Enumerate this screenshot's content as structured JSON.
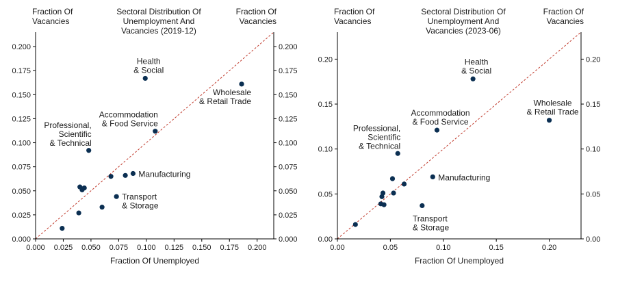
{
  "colors": {
    "point": "#0b2f52",
    "diagonal": "#c0392b",
    "axis": "#000000"
  },
  "chart_data": [
    {
      "type": "scatter",
      "title": "Sectoral Distribution Of Unemployment And Vacancies (2019-12)",
      "title_lines": [
        "Sectoral Distribution Of",
        "Unemployment And",
        "Vacancies (2019-12)"
      ],
      "ylabel_left_lines": [
        "Fraction Of",
        "Vacancies"
      ],
      "ylabel_right_lines": [
        "Fraction Of",
        "Vacancies"
      ],
      "xlabel": "Fraction Of Unemployed",
      "xlim": [
        0.0,
        0.215
      ],
      "ylim": [
        0.0,
        0.215
      ],
      "xticks": [
        "0.000",
        "0.025",
        "0.050",
        "0.075",
        "0.100",
        "0.125",
        "0.150",
        "0.175",
        "0.200"
      ],
      "yticks": [
        "0.000",
        "0.025",
        "0.050",
        "0.075",
        "0.100",
        "0.125",
        "0.150",
        "0.175",
        "0.200"
      ],
      "diagonal": true,
      "points": [
        {
          "x": 0.024,
          "y": 0.011
        },
        {
          "x": 0.039,
          "y": 0.027
        },
        {
          "x": 0.04,
          "y": 0.054
        },
        {
          "x": 0.042,
          "y": 0.051
        },
        {
          "x": 0.044,
          "y": 0.053
        },
        {
          "x": 0.048,
          "y": 0.092
        },
        {
          "x": 0.06,
          "y": 0.033
        },
        {
          "x": 0.068,
          "y": 0.065
        },
        {
          "x": 0.073,
          "y": 0.044
        },
        {
          "x": 0.081,
          "y": 0.066
        },
        {
          "x": 0.088,
          "y": 0.068
        },
        {
          "x": 0.099,
          "y": 0.167
        },
        {
          "x": 0.108,
          "y": 0.112
        },
        {
          "x": 0.186,
          "y": 0.161
        }
      ],
      "annotations": [
        {
          "lines": [
            "Health",
            "& Social"
          ],
          "x": 0.099,
          "y": 0.167,
          "pos": "above"
        },
        {
          "lines": [
            "Wholesale",
            "& Retail Trade"
          ],
          "x": 0.186,
          "y": 0.161,
          "pos": "below-left"
        },
        {
          "lines": [
            "Accommodation",
            "& Food Service"
          ],
          "x": 0.108,
          "y": 0.112,
          "pos": "above-left"
        },
        {
          "lines": [
            "Professional,",
            "Scientific",
            "& Technical"
          ],
          "x": 0.048,
          "y": 0.092,
          "pos": "above-left"
        },
        {
          "lines": [
            "Manufacturing"
          ],
          "x": 0.088,
          "y": 0.068,
          "pos": "right"
        },
        {
          "lines": [
            "Transport",
            "& Storage"
          ],
          "x": 0.073,
          "y": 0.044,
          "pos": "right"
        }
      ]
    },
    {
      "type": "scatter",
      "title": "Sectoral Distribution Of Unemployment And Vacancies (2023-06)",
      "title_lines": [
        "Sectoral Distribution Of",
        "Unemployment And",
        "Vacancies (2023-06)"
      ],
      "ylabel_left_lines": [
        "Fraction Of",
        "Vacancies"
      ],
      "ylabel_right_lines": [
        "Fraction Of",
        "Vacancies"
      ],
      "xlabel": "Fraction Of Unemployed",
      "xlim": [
        0.0,
        0.23
      ],
      "ylim": [
        0.0,
        0.23
      ],
      "xticks": [
        "0.00",
        "0.05",
        "0.10",
        "0.15",
        "0.20"
      ],
      "yticks": [
        "0.00",
        "0.05",
        "0.10",
        "0.15",
        "0.20"
      ],
      "diagonal": true,
      "points": [
        {
          "x": 0.017,
          "y": 0.016
        },
        {
          "x": 0.041,
          "y": 0.039
        },
        {
          "x": 0.042,
          "y": 0.047
        },
        {
          "x": 0.043,
          "y": 0.051
        },
        {
          "x": 0.044,
          "y": 0.038
        },
        {
          "x": 0.052,
          "y": 0.067
        },
        {
          "x": 0.053,
          "y": 0.051
        },
        {
          "x": 0.057,
          "y": 0.095
        },
        {
          "x": 0.063,
          "y": 0.061
        },
        {
          "x": 0.08,
          "y": 0.037
        },
        {
          "x": 0.09,
          "y": 0.069
        },
        {
          "x": 0.094,
          "y": 0.121
        },
        {
          "x": 0.128,
          "y": 0.178
        },
        {
          "x": 0.2,
          "y": 0.132
        }
      ],
      "annotations": [
        {
          "lines": [
            "Health",
            "& Social"
          ],
          "x": 0.128,
          "y": 0.178,
          "pos": "above"
        },
        {
          "lines": [
            "Wholesale",
            "& Retail Trade"
          ],
          "x": 0.2,
          "y": 0.132,
          "pos": "above"
        },
        {
          "lines": [
            "Accommodation",
            "& Food Service"
          ],
          "x": 0.094,
          "y": 0.121,
          "pos": "above"
        },
        {
          "lines": [
            "Professional,",
            "Scientific",
            "& Technical"
          ],
          "x": 0.057,
          "y": 0.095,
          "pos": "above-left"
        },
        {
          "lines": [
            "Manufacturing"
          ],
          "x": 0.09,
          "y": 0.069,
          "pos": "right"
        },
        {
          "lines": [
            "Transport",
            "& Storage"
          ],
          "x": 0.08,
          "y": 0.037,
          "pos": "below"
        }
      ]
    }
  ]
}
